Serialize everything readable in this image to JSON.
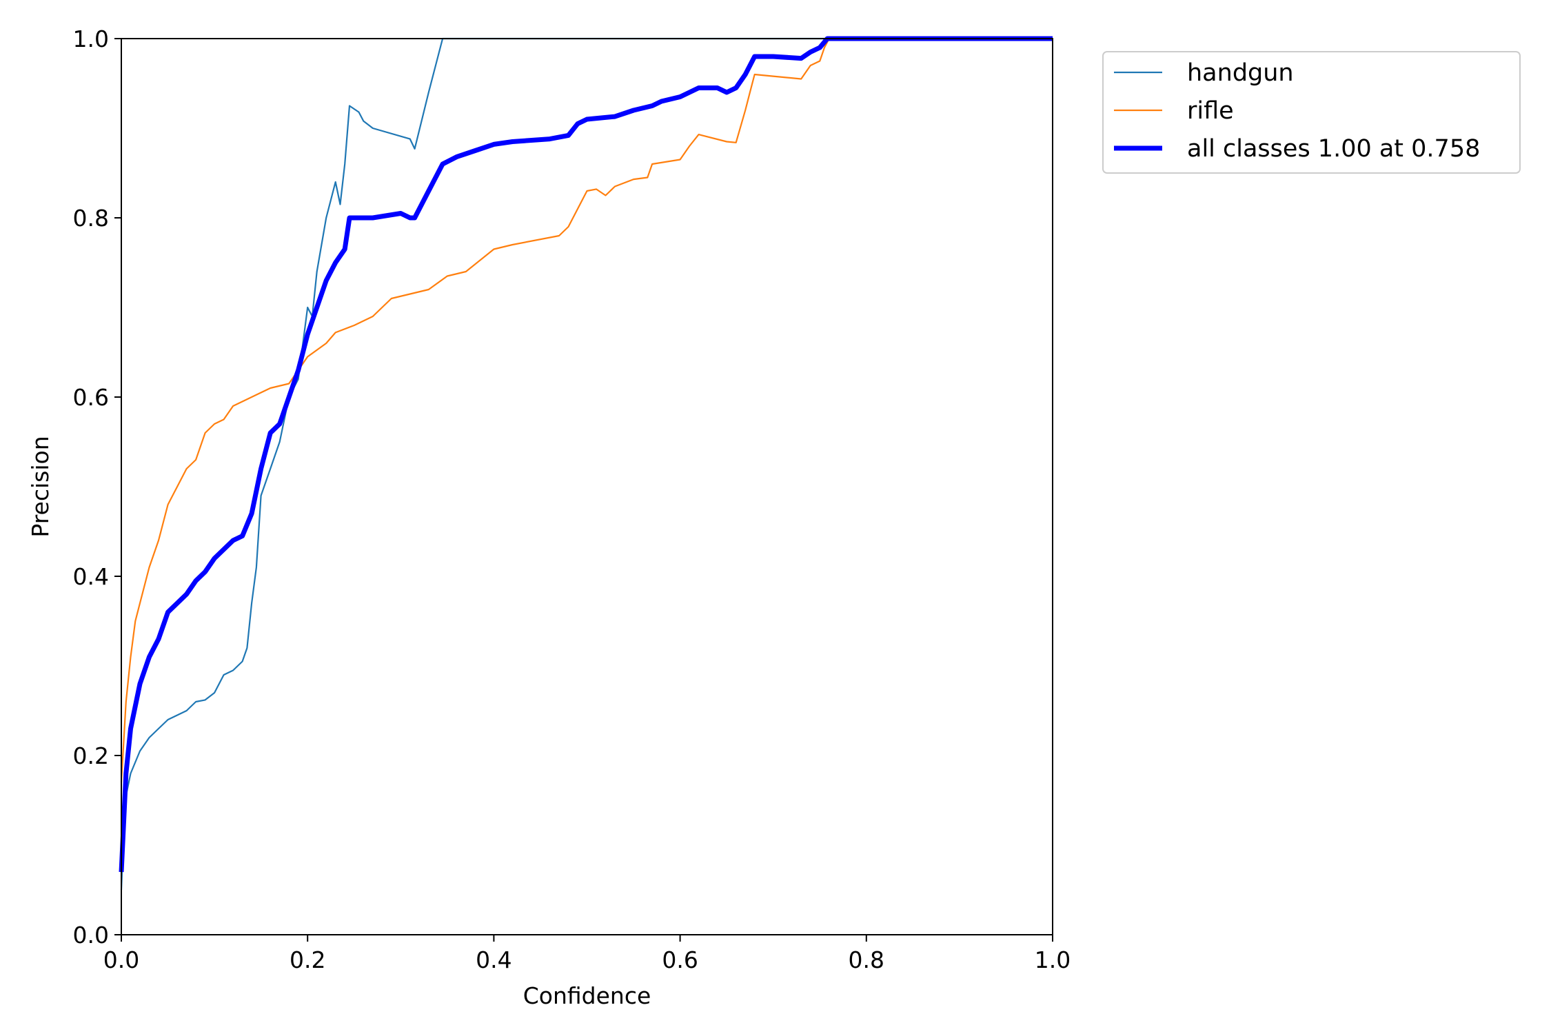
{
  "chart_data": {
    "type": "line",
    "title": "",
    "xlabel": "Confidence",
    "ylabel": "Precision",
    "xlim": [
      0.0,
      1.0
    ],
    "ylim": [
      0.0,
      1.0
    ],
    "xticks": [
      "0.0",
      "0.2",
      "0.4",
      "0.6",
      "0.8",
      "1.0"
    ],
    "yticks": [
      "0.0",
      "0.2",
      "0.4",
      "0.6",
      "0.8",
      "1.0"
    ],
    "grid": false,
    "legend_position": "outside-top-right",
    "series": [
      {
        "name": "handgun",
        "color": "#1f77b4",
        "points": [
          [
            0.0,
            0.05
          ],
          [
            0.004,
            0.15
          ],
          [
            0.01,
            0.18
          ],
          [
            0.02,
            0.205
          ],
          [
            0.03,
            0.22
          ],
          [
            0.04,
            0.23
          ],
          [
            0.05,
            0.24
          ],
          [
            0.06,
            0.245
          ],
          [
            0.07,
            0.25
          ],
          [
            0.08,
            0.26
          ],
          [
            0.09,
            0.262
          ],
          [
            0.1,
            0.27
          ],
          [
            0.11,
            0.29
          ],
          [
            0.12,
            0.295
          ],
          [
            0.13,
            0.305
          ],
          [
            0.135,
            0.32
          ],
          [
            0.14,
            0.37
          ],
          [
            0.145,
            0.41
          ],
          [
            0.15,
            0.49
          ],
          [
            0.16,
            0.52
          ],
          [
            0.17,
            0.55
          ],
          [
            0.18,
            0.6
          ],
          [
            0.19,
            0.62
          ],
          [
            0.2,
            0.7
          ],
          [
            0.205,
            0.69
          ],
          [
            0.21,
            0.74
          ],
          [
            0.22,
            0.8
          ],
          [
            0.23,
            0.84
          ],
          [
            0.235,
            0.815
          ],
          [
            0.24,
            0.86
          ],
          [
            0.245,
            0.925
          ],
          [
            0.255,
            0.918
          ],
          [
            0.26,
            0.908
          ],
          [
            0.27,
            0.9
          ],
          [
            0.31,
            0.888
          ],
          [
            0.315,
            0.877
          ],
          [
            0.33,
            0.94
          ],
          [
            0.345,
            1.0
          ],
          [
            1.0,
            1.0
          ]
        ]
      },
      {
        "name": "rifle",
        "color": "#ff7f0e",
        "points": [
          [
            0.0,
            0.17
          ],
          [
            0.005,
            0.26
          ],
          [
            0.01,
            0.31
          ],
          [
            0.015,
            0.35
          ],
          [
            0.02,
            0.37
          ],
          [
            0.03,
            0.41
          ],
          [
            0.04,
            0.44
          ],
          [
            0.05,
            0.48
          ],
          [
            0.06,
            0.5
          ],
          [
            0.07,
            0.52
          ],
          [
            0.08,
            0.53
          ],
          [
            0.09,
            0.56
          ],
          [
            0.1,
            0.57
          ],
          [
            0.11,
            0.575
          ],
          [
            0.12,
            0.59
          ],
          [
            0.13,
            0.595
          ],
          [
            0.14,
            0.6
          ],
          [
            0.16,
            0.61
          ],
          [
            0.18,
            0.615
          ],
          [
            0.19,
            0.63
          ],
          [
            0.2,
            0.645
          ],
          [
            0.22,
            0.66
          ],
          [
            0.23,
            0.672
          ],
          [
            0.25,
            0.68
          ],
          [
            0.27,
            0.69
          ],
          [
            0.29,
            0.71
          ],
          [
            0.31,
            0.715
          ],
          [
            0.33,
            0.72
          ],
          [
            0.35,
            0.735
          ],
          [
            0.37,
            0.74
          ],
          [
            0.4,
            0.765
          ],
          [
            0.42,
            0.77
          ],
          [
            0.47,
            0.78
          ],
          [
            0.48,
            0.79
          ],
          [
            0.49,
            0.81
          ],
          [
            0.5,
            0.83
          ],
          [
            0.51,
            0.832
          ],
          [
            0.52,
            0.825
          ],
          [
            0.53,
            0.835
          ],
          [
            0.55,
            0.843
          ],
          [
            0.565,
            0.845
          ],
          [
            0.57,
            0.86
          ],
          [
            0.6,
            0.865
          ],
          [
            0.61,
            0.88
          ],
          [
            0.62,
            0.893
          ],
          [
            0.65,
            0.885
          ],
          [
            0.66,
            0.884
          ],
          [
            0.67,
            0.92
          ],
          [
            0.675,
            0.94
          ],
          [
            0.68,
            0.96
          ],
          [
            0.7,
            0.958
          ],
          [
            0.73,
            0.955
          ],
          [
            0.74,
            0.97
          ],
          [
            0.75,
            0.975
          ],
          [
            0.755,
            0.99
          ],
          [
            0.76,
            1.0
          ],
          [
            1.0,
            1.0
          ]
        ]
      },
      {
        "name": "all classes 1.00 at 0.758",
        "color": "#0000ff",
        "points": [
          [
            0.0,
            0.07
          ],
          [
            0.005,
            0.18
          ],
          [
            0.01,
            0.23
          ],
          [
            0.02,
            0.28
          ],
          [
            0.03,
            0.31
          ],
          [
            0.04,
            0.33
          ],
          [
            0.05,
            0.36
          ],
          [
            0.06,
            0.37
          ],
          [
            0.07,
            0.38
          ],
          [
            0.08,
            0.395
          ],
          [
            0.09,
            0.405
          ],
          [
            0.1,
            0.42
          ],
          [
            0.11,
            0.43
          ],
          [
            0.12,
            0.44
          ],
          [
            0.13,
            0.445
          ],
          [
            0.14,
            0.47
          ],
          [
            0.15,
            0.52
          ],
          [
            0.16,
            0.56
          ],
          [
            0.17,
            0.57
          ],
          [
            0.18,
            0.6
          ],
          [
            0.19,
            0.63
          ],
          [
            0.2,
            0.67
          ],
          [
            0.21,
            0.7
          ],
          [
            0.22,
            0.73
          ],
          [
            0.23,
            0.75
          ],
          [
            0.24,
            0.765
          ],
          [
            0.245,
            0.8
          ],
          [
            0.27,
            0.8
          ],
          [
            0.3,
            0.805
          ],
          [
            0.31,
            0.8
          ],
          [
            0.315,
            0.8
          ],
          [
            0.33,
            0.83
          ],
          [
            0.345,
            0.86
          ],
          [
            0.36,
            0.868
          ],
          [
            0.38,
            0.875
          ],
          [
            0.4,
            0.882
          ],
          [
            0.42,
            0.885
          ],
          [
            0.46,
            0.888
          ],
          [
            0.48,
            0.892
          ],
          [
            0.49,
            0.905
          ],
          [
            0.5,
            0.91
          ],
          [
            0.53,
            0.913
          ],
          [
            0.55,
            0.92
          ],
          [
            0.57,
            0.925
          ],
          [
            0.58,
            0.93
          ],
          [
            0.6,
            0.935
          ],
          [
            0.61,
            0.94
          ],
          [
            0.62,
            0.945
          ],
          [
            0.64,
            0.945
          ],
          [
            0.65,
            0.94
          ],
          [
            0.66,
            0.945
          ],
          [
            0.67,
            0.96
          ],
          [
            0.68,
            0.98
          ],
          [
            0.7,
            0.98
          ],
          [
            0.73,
            0.978
          ],
          [
            0.74,
            0.985
          ],
          [
            0.75,
            0.99
          ],
          [
            0.758,
            1.0
          ],
          [
            1.0,
            1.0
          ]
        ]
      }
    ]
  }
}
